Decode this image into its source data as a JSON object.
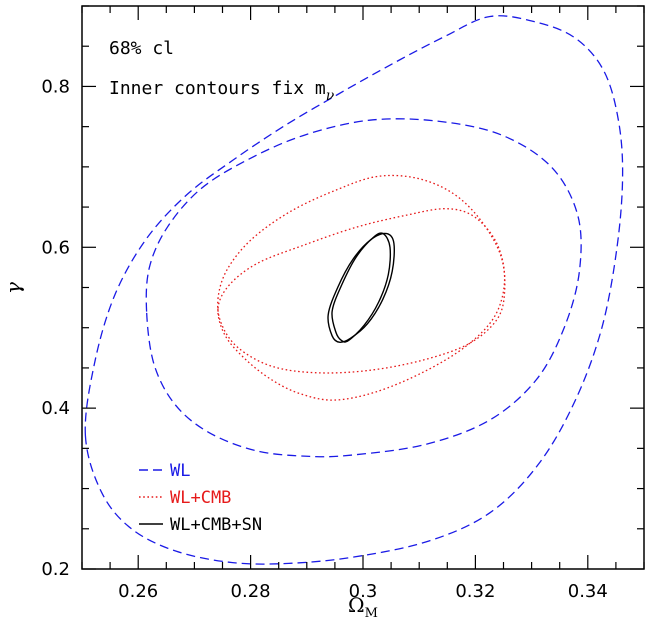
{
  "chart_data": {
    "type": "contour",
    "title": "",
    "xlabel": "Ω",
    "xlabel_sub": "M",
    "ylabel": "γ",
    "xlim": [
      0.25,
      0.35
    ],
    "ylim": [
      0.2,
      0.9
    ],
    "xticks": [
      0.26,
      0.28,
      0.3,
      0.32,
      0.34
    ],
    "xtick_labels": [
      "0.26",
      "0.28",
      "0.3",
      "0.32",
      "0.34"
    ],
    "yticks": [
      0.2,
      0.4,
      0.6,
      0.8
    ],
    "ytick_labels": [
      "0.2",
      "0.4",
      "0.6",
      "0.8"
    ],
    "annotations": {
      "confidence": "68% cl",
      "inner_note": "Inner contours fix m",
      "inner_note_sub": "ν"
    },
    "legend_position": "bottom-left",
    "series": [
      {
        "name": "WL",
        "color": "#1a1ae6",
        "dash": "dashed",
        "contours": [
          [
            [
              0.2506,
              0.366
            ],
            [
              0.2522,
              0.455
            ],
            [
              0.2558,
              0.54
            ],
            [
              0.2614,
              0.61
            ],
            [
              0.2686,
              0.665
            ],
            [
              0.2768,
              0.708
            ],
            [
              0.2858,
              0.75
            ],
            [
              0.2955,
              0.79
            ],
            [
              0.3052,
              0.828
            ],
            [
              0.3145,
              0.862
            ],
            [
              0.3226,
              0.887
            ],
            [
              0.3308,
              0.88
            ],
            [
              0.3378,
              0.86
            ],
            [
              0.3428,
              0.82
            ],
            [
              0.3454,
              0.76
            ],
            [
              0.3462,
              0.69
            ],
            [
              0.3452,
              0.6
            ],
            [
              0.3425,
              0.5
            ],
            [
              0.3378,
              0.41
            ],
            [
              0.3312,
              0.33
            ],
            [
              0.3226,
              0.27
            ],
            [
              0.3118,
              0.235
            ],
            [
              0.2985,
              0.215
            ],
            [
              0.2868,
              0.207
            ],
            [
              0.2768,
              0.208
            ],
            [
              0.2668,
              0.222
            ],
            [
              0.2588,
              0.25
            ],
            [
              0.2535,
              0.295
            ],
            [
              0.2506,
              0.366
            ]
          ],
          [
            [
              0.2615,
              0.52
            ],
            [
              0.262,
              0.575
            ],
            [
              0.2652,
              0.625
            ],
            [
              0.2712,
              0.673
            ],
            [
              0.2798,
              0.71
            ],
            [
              0.2898,
              0.74
            ],
            [
              0.3012,
              0.758
            ],
            [
              0.313,
              0.757
            ],
            [
              0.3245,
              0.74
            ],
            [
              0.3335,
              0.7
            ],
            [
              0.3382,
              0.64
            ],
            [
              0.3385,
              0.57
            ],
            [
              0.3358,
              0.5
            ],
            [
              0.3308,
              0.435
            ],
            [
              0.3225,
              0.385
            ],
            [
              0.3112,
              0.355
            ],
            [
              0.2985,
              0.342
            ],
            [
              0.2905,
              0.34
            ],
            [
              0.281,
              0.347
            ],
            [
              0.2725,
              0.37
            ],
            [
              0.2665,
              0.405
            ],
            [
              0.2628,
              0.455
            ],
            [
              0.2615,
              0.52
            ]
          ]
        ]
      },
      {
        "name": "WL+CMB",
        "color": "#e61a1a",
        "dash": "dotted",
        "contours": [
          [
            [
              0.2742,
              0.536
            ],
            [
              0.2758,
              0.572
            ],
            [
              0.2802,
              0.61
            ],
            [
              0.2872,
              0.645
            ],
            [
              0.2955,
              0.672
            ],
            [
              0.3025,
              0.688
            ],
            [
              0.3095,
              0.686
            ],
            [
              0.3158,
              0.668
            ],
            [
              0.3208,
              0.635
            ],
            [
              0.3245,
              0.59
            ],
            [
              0.3252,
              0.545
            ],
            [
              0.3238,
              0.51
            ],
            [
              0.3188,
              0.48
            ],
            [
              0.3108,
              0.46
            ],
            [
              0.3012,
              0.447
            ],
            [
              0.2918,
              0.444
            ],
            [
              0.2838,
              0.452
            ],
            [
              0.2778,
              0.475
            ],
            [
              0.2748,
              0.505
            ],
            [
              0.2742,
              0.536
            ]
          ],
          [
            [
              0.2742,
              0.524
            ],
            [
              0.2762,
              0.553
            ],
            [
              0.2812,
              0.58
            ],
            [
              0.2892,
              0.602
            ],
            [
              0.2988,
              0.625
            ],
            [
              0.3078,
              0.64
            ],
            [
              0.3148,
              0.648
            ],
            [
              0.3198,
              0.638
            ],
            [
              0.3238,
              0.605
            ],
            [
              0.3252,
              0.56
            ],
            [
              0.3235,
              0.515
            ],
            [
              0.3185,
              0.478
            ],
            [
              0.3108,
              0.445
            ],
            [
              0.3022,
              0.42
            ],
            [
              0.2948,
              0.41
            ],
            [
              0.2888,
              0.418
            ],
            [
              0.2838,
              0.435
            ],
            [
              0.2792,
              0.46
            ],
            [
              0.2755,
              0.49
            ],
            [
              0.2742,
              0.524
            ]
          ]
        ]
      },
      {
        "name": "WL+CMB+SN",
        "color": "#000000",
        "dash": "solid",
        "contours": [
          [
            [
              0.2945,
              0.49
            ],
            [
              0.2938,
              0.516
            ],
            [
              0.2955,
              0.55
            ],
            [
              0.2982,
              0.585
            ],
            [
              0.3015,
              0.61
            ],
            [
              0.3042,
              0.617
            ],
            [
              0.3055,
              0.605
            ],
            [
              0.3052,
              0.57
            ],
            [
              0.3035,
              0.535
            ],
            [
              0.3008,
              0.505
            ],
            [
              0.2978,
              0.487
            ],
            [
              0.2958,
              0.482
            ],
            [
              0.2945,
              0.49
            ]
          ],
          [
            [
              0.2952,
              0.494
            ],
            [
              0.2945,
              0.52
            ],
            [
              0.2962,
              0.553
            ],
            [
              0.2988,
              0.588
            ],
            [
              0.3018,
              0.612
            ],
            [
              0.3036,
              0.617
            ],
            [
              0.3048,
              0.6
            ],
            [
              0.3045,
              0.566
            ],
            [
              0.3028,
              0.532
            ],
            [
              0.3002,
              0.503
            ],
            [
              0.2974,
              0.484
            ],
            [
              0.2962,
              0.484
            ],
            [
              0.2952,
              0.494
            ]
          ]
        ]
      }
    ]
  }
}
